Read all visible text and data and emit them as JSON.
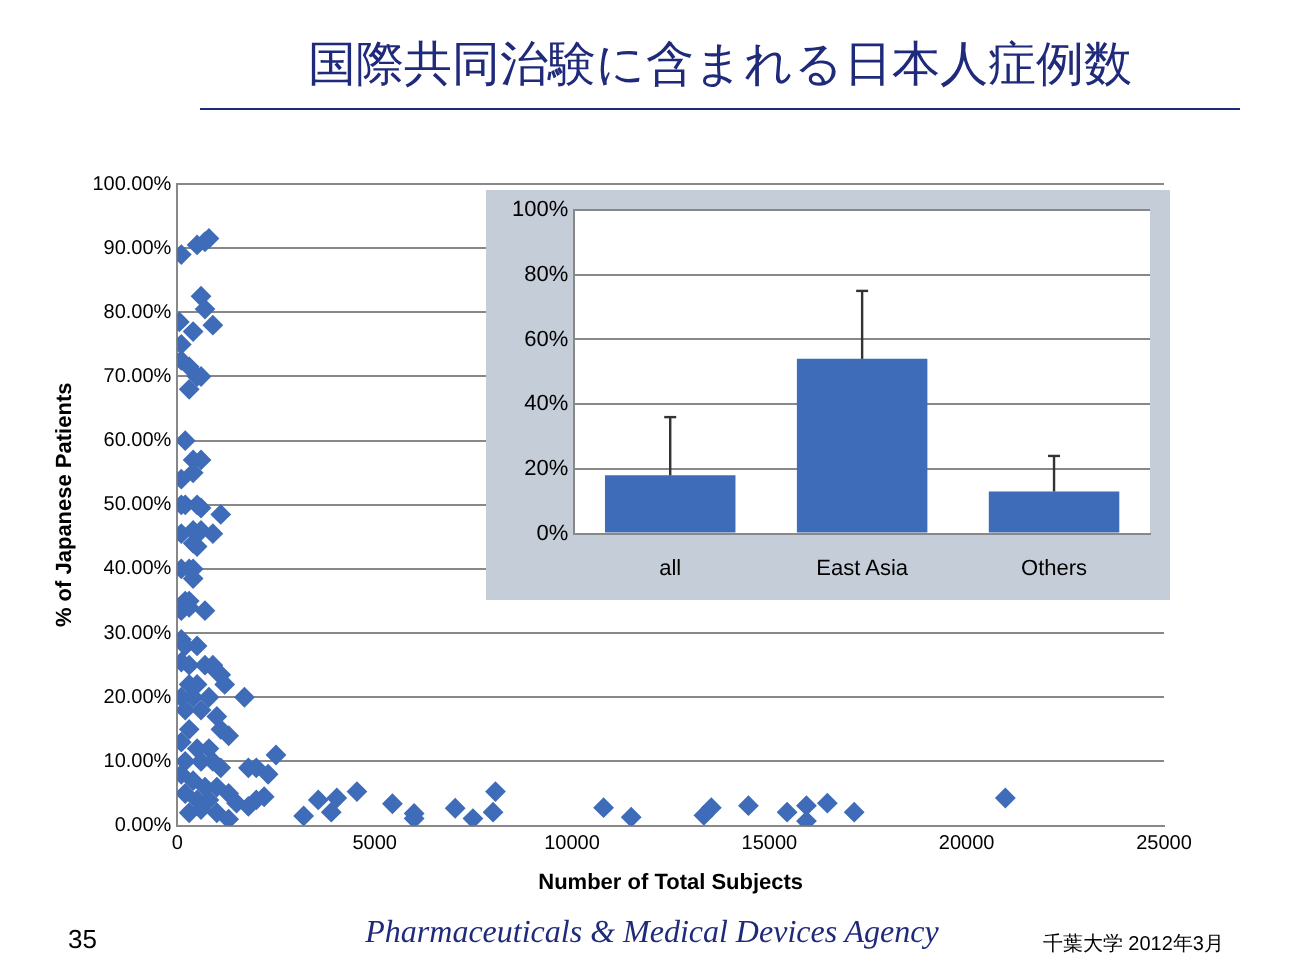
{
  "chart_data": [
    {
      "type": "scatter",
      "title": "国際共同治験に含まれる日本人症例数",
      "xlabel": "Number of Total Subjects",
      "ylabel": "% of Japanese Patients",
      "color": "#3f6cb8",
      "marker": "diamond",
      "grid": "y",
      "x": [
        100,
        500,
        700,
        800,
        600,
        700,
        900,
        50,
        400,
        100,
        100,
        300,
        500,
        600,
        300,
        200,
        400,
        600,
        400,
        100,
        100,
        200,
        500,
        600,
        1100,
        100,
        400,
        600,
        900,
        400,
        500,
        100,
        300,
        400,
        400,
        200,
        300,
        100,
        300,
        700,
        100,
        200,
        500,
        100,
        300,
        700,
        900,
        1000,
        1100,
        1200,
        300,
        500,
        100,
        400,
        800,
        1700,
        200,
        600,
        1000,
        1100,
        1300,
        300,
        100,
        500,
        800,
        200,
        600,
        900,
        1100,
        1800,
        2000,
        2300,
        2500,
        100,
        400,
        700,
        1000,
        1300,
        200,
        500,
        800,
        1500,
        1800,
        2000,
        2200,
        300,
        600,
        1000,
        1300,
        3200,
        3570,
        3900,
        4040,
        4550,
        5450,
        6000,
        6000,
        7040,
        7490,
        8000,
        8060,
        10800,
        11500,
        13340,
        13530,
        14470,
        15450,
        15940,
        15940,
        16470,
        17150,
        20980
      ],
      "values": [
        89,
        90.5,
        91,
        91.5,
        82.5,
        80.5,
        78,
        78.5,
        77,
        75,
        72.5,
        71.5,
        70,
        70,
        68,
        60,
        57,
        57,
        55,
        54,
        50,
        50,
        50,
        49.5,
        48.5,
        45.5,
        46,
        46,
        45.5,
        44,
        43.5,
        40,
        40,
        40,
        38.5,
        35,
        35,
        33.5,
        34,
        33.5,
        29,
        28,
        28,
        25.5,
        25,
        25,
        25,
        24,
        23.5,
        22,
        22,
        22,
        20,
        20,
        20,
        20,
        18,
        18,
        17,
        15,
        14,
        15,
        13,
        12,
        12,
        10,
        10,
        10,
        9,
        9,
        9,
        8,
        11,
        8,
        7,
        6,
        6,
        5,
        5,
        4,
        4,
        3.5,
        3,
        4,
        4.5,
        2,
        2.5,
        2,
        1,
        1.5,
        4,
        2.1,
        4.3,
        5.3,
        3.4,
        1.9,
        1.1,
        2.7,
        1.1,
        2.1,
        5.3,
        2.8,
        1.3,
        1.6,
        2.8,
        3.1,
        2.1,
        3.1,
        0.7,
        3.5,
        2.1,
        4.3
      ],
      "xlim": [
        0,
        25000
      ],
      "xticks": [
        0,
        5000,
        10000,
        15000,
        20000,
        25000
      ],
      "ylim": [
        0,
        100
      ],
      "yticks": [
        {
          "value": 0,
          "label": "0.00%"
        },
        {
          "value": 10,
          "label": "10.00%"
        },
        {
          "value": 20,
          "label": "20.00%"
        },
        {
          "value": 30,
          "label": "30.00%"
        },
        {
          "value": 40,
          "label": "40.00%"
        },
        {
          "value": 50,
          "label": "50.00%"
        },
        {
          "value": 60,
          "label": "60.00%"
        },
        {
          "value": 70,
          "label": "70.00%"
        },
        {
          "value": 80,
          "label": "80.00%"
        },
        {
          "value": 90,
          "label": "90.00%"
        },
        {
          "value": 100,
          "label": "100.00%"
        }
      ],
      "annotations": [
        "35",
        "Pharmaceuticals & Medical Devices Agency",
        "千葉大学 2012年3月"
      ]
    },
    {
      "type": "bar",
      "categories": [
        "all",
        "East Asia",
        "Others"
      ],
      "values": [
        18,
        54,
        13
      ],
      "errors": [
        [
          18,
          36
        ],
        [
          54,
          75
        ],
        [
          13,
          24
        ]
      ],
      "color": "#3f6cb8",
      "grid": "y",
      "ylim": [
        0,
        100
      ],
      "yticks": [
        {
          "value": 0,
          "label": "0%"
        },
        {
          "value": 20,
          "label": "20%"
        },
        {
          "value": 40,
          "label": "40%"
        },
        {
          "value": 60,
          "label": "60%"
        },
        {
          "value": 80,
          "label": "80%"
        },
        {
          "value": 100,
          "label": "100%"
        }
      ]
    }
  ]
}
